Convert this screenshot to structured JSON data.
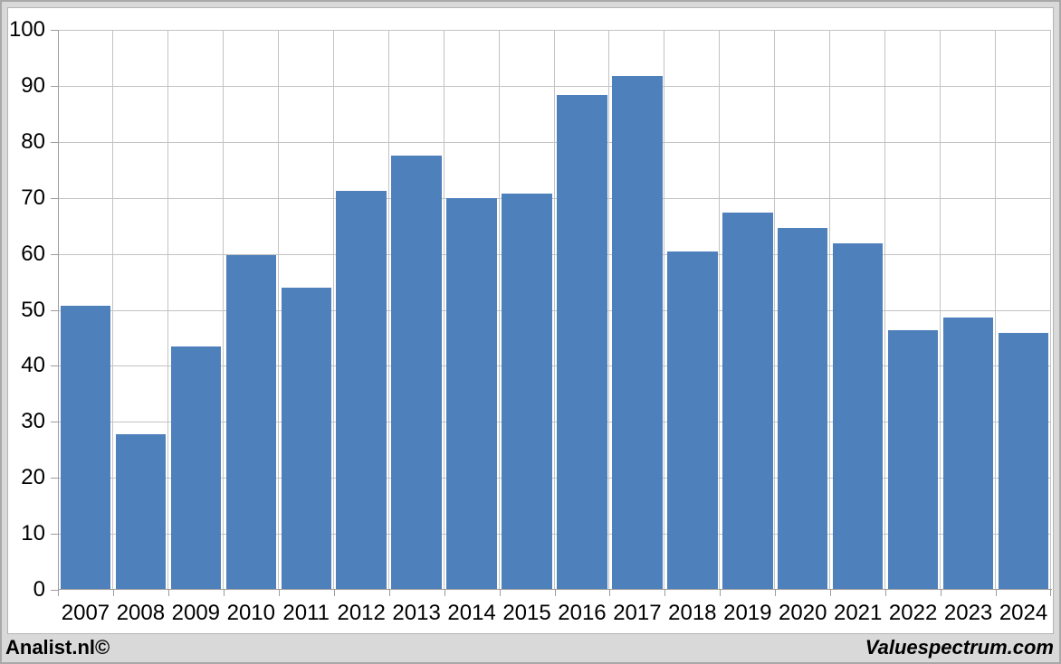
{
  "branding": {
    "left": "Analist.nl©",
    "right": "Valuespectrum.com"
  },
  "chart_data": {
    "type": "bar",
    "title": "",
    "xlabel": "",
    "ylabel": "",
    "categories": [
      "2007",
      "2008",
      "2009",
      "2010",
      "2011",
      "2012",
      "2013",
      "2014",
      "2015",
      "2016",
      "2017",
      "2018",
      "2019",
      "2020",
      "2021",
      "2022",
      "2023",
      "2024"
    ],
    "values": [
      50.8,
      27.8,
      43.4,
      59.8,
      54.0,
      71.2,
      77.5,
      70.0,
      70.7,
      88.4,
      91.8,
      60.4,
      67.3,
      64.7,
      61.8,
      46.3,
      48.7,
      45.8
    ],
    "ylim": [
      0,
      100
    ],
    "ytick_step": 10,
    "yticks": [
      "0",
      "10",
      "20",
      "30",
      "40",
      "50",
      "60",
      "70",
      "80",
      "90",
      "100"
    ],
    "grid": true,
    "legend": "none",
    "bar_color": "#4e80bc",
    "gridline_color": "#c3c3c3",
    "axis_color": "#9c9c9c",
    "plot_background": "#ffffff",
    "frame_background": "#d9d9d9",
    "text_color": "#000000"
  }
}
